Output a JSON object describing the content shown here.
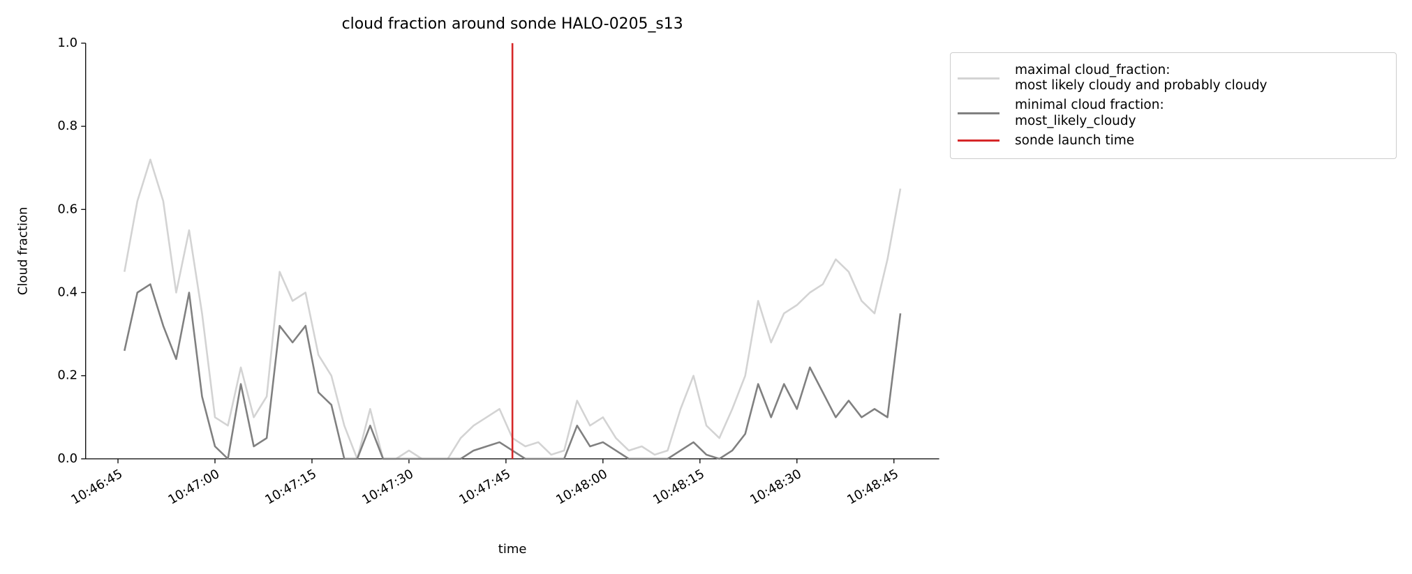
{
  "chart_data": {
    "type": "line",
    "title": "cloud fraction around sonde HALO-0205_s13",
    "x_label": "time",
    "y_label": "Cloud fraction",
    "x": [
      "10:46:46",
      "10:46:48",
      "10:46:50",
      "10:46:52",
      "10:46:54",
      "10:46:56",
      "10:46:58",
      "10:47:00",
      "10:47:02",
      "10:47:04",
      "10:47:06",
      "10:47:08",
      "10:47:10",
      "10:47:12",
      "10:47:14",
      "10:47:16",
      "10:47:18",
      "10:47:20",
      "10:47:22",
      "10:47:24",
      "10:47:26",
      "10:47:28",
      "10:47:30",
      "10:47:32",
      "10:47:34",
      "10:47:36",
      "10:47:38",
      "10:47:40",
      "10:47:42",
      "10:47:44",
      "10:47:46",
      "10:47:48",
      "10:47:50",
      "10:47:52",
      "10:47:54",
      "10:47:56",
      "10:47:58",
      "10:48:00",
      "10:48:02",
      "10:48:04",
      "10:48:06",
      "10:48:08",
      "10:48:10",
      "10:48:12",
      "10:48:14",
      "10:48:16",
      "10:48:18",
      "10:48:20",
      "10:48:22",
      "10:48:24",
      "10:48:26",
      "10:48:28",
      "10:48:30",
      "10:48:32",
      "10:48:34",
      "10:48:36",
      "10:48:38",
      "10:48:40",
      "10:48:42",
      "10:48:44",
      "10:48:46"
    ],
    "series": [
      {
        "name": "maximal cloud_fraction:\nmost likely cloudy and probably cloudy",
        "color": "#d3d3d3",
        "values": [
          0.45,
          0.62,
          0.72,
          0.62,
          0.4,
          0.55,
          0.35,
          0.1,
          0.08,
          0.22,
          0.1,
          0.15,
          0.45,
          0.38,
          0.4,
          0.25,
          0.2,
          0.08,
          0.0,
          0.12,
          0.0,
          0.0,
          0.02,
          0.0,
          0.0,
          0.0,
          0.05,
          0.08,
          0.1,
          0.12,
          0.05,
          0.03,
          0.04,
          0.01,
          0.02,
          0.14,
          0.08,
          0.1,
          0.05,
          0.02,
          0.03,
          0.01,
          0.02,
          0.12,
          0.2,
          0.08,
          0.05,
          0.12,
          0.2,
          0.38,
          0.28,
          0.35,
          0.37,
          0.4,
          0.42,
          0.48,
          0.45,
          0.38,
          0.35,
          0.48,
          0.65
        ]
      },
      {
        "name": "minimal cloud fraction:\nmost_likely_cloudy",
        "color": "#808080",
        "values": [
          0.26,
          0.4,
          0.42,
          0.32,
          0.24,
          0.4,
          0.15,
          0.03,
          0.0,
          0.18,
          0.03,
          0.05,
          0.32,
          0.28,
          0.32,
          0.16,
          0.13,
          0.0,
          0.0,
          0.08,
          0.0,
          0.0,
          0.0,
          0.0,
          0.0,
          0.0,
          0.0,
          0.02,
          0.03,
          0.04,
          0.02,
          0.0,
          0.0,
          0.0,
          0.0,
          0.08,
          0.03,
          0.04,
          0.02,
          0.0,
          0.0,
          0.0,
          0.0,
          0.02,
          0.04,
          0.01,
          0.0,
          0.02,
          0.06,
          0.18,
          0.1,
          0.18,
          0.12,
          0.22,
          0.16,
          0.1,
          0.14,
          0.1,
          0.12,
          0.1,
          0.35
        ]
      }
    ],
    "vlines": [
      {
        "name": "sonde launch time",
        "color": "#d62728",
        "x": "10:47:46"
      }
    ],
    "xlim": [
      "10:46:40",
      "10:48:52"
    ],
    "xticks": [
      "10:46:45",
      "10:47:00",
      "10:47:15",
      "10:47:30",
      "10:47:45",
      "10:48:00",
      "10:48:15",
      "10:48:30",
      "10:48:45"
    ],
    "ylim": [
      0,
      1
    ],
    "yticks": [
      {
        "value": 0,
        "label": "0.0"
      },
      0.2,
      0.4,
      0.6,
      0.8,
      {
        "value": 1,
        "label": "1.0"
      }
    ],
    "legend": "upper right outside"
  }
}
